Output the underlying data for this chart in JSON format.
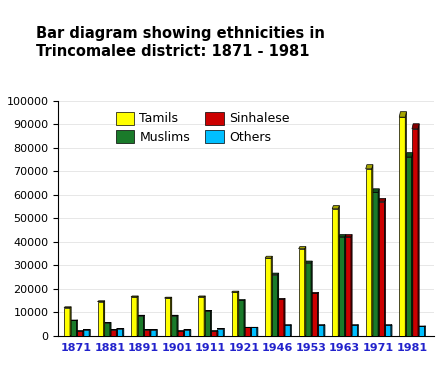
{
  "title": "Bar diagram showing ethnicities in\nTrincomalee district: 1871 - 1981",
  "years": [
    "1871",
    "1881",
    "1891",
    "1901",
    "1911",
    "1921",
    "1946",
    "1953",
    "1963",
    "1971",
    "1981"
  ],
  "ethnicities": [
    "Tamils",
    "Muslims",
    "Sinhalese",
    "Others"
  ],
  "colors": [
    "#FFFF00",
    "#1A7A2A",
    "#CC0000",
    "#00BFFF"
  ],
  "shadow_color": "#999900",
  "data": {
    "Tamils": [
      12000,
      14500,
      16500,
      16000,
      16500,
      18500,
      33000,
      37000,
      54000,
      71000,
      93000
    ],
    "Muslims": [
      6500,
      5500,
      8500,
      8500,
      10500,
      15000,
      26000,
      31000,
      42000,
      61000,
      76000
    ],
    "Sinhalese": [
      2000,
      2500,
      2500,
      2000,
      2000,
      3500,
      15500,
      18000,
      42000,
      57000,
      88000
    ],
    "Others": [
      2500,
      3000,
      2500,
      2500,
      3000,
      3500,
      4500,
      4500,
      4500,
      4500,
      4000
    ]
  },
  "ylim": [
    0,
    100000
  ],
  "yticks": [
    0,
    10000,
    20000,
    30000,
    40000,
    50000,
    60000,
    70000,
    80000,
    90000,
    100000
  ],
  "background_color": "#FFFFFF",
  "border_color": "#000000",
  "xlabel_color": "#2222CC",
  "title_fontsize": 10.5,
  "tick_fontsize": 8,
  "legend_fontsize": 9,
  "legend_order": [
    "Tamils",
    "Muslims",
    "Sinhalese",
    "Others"
  ]
}
